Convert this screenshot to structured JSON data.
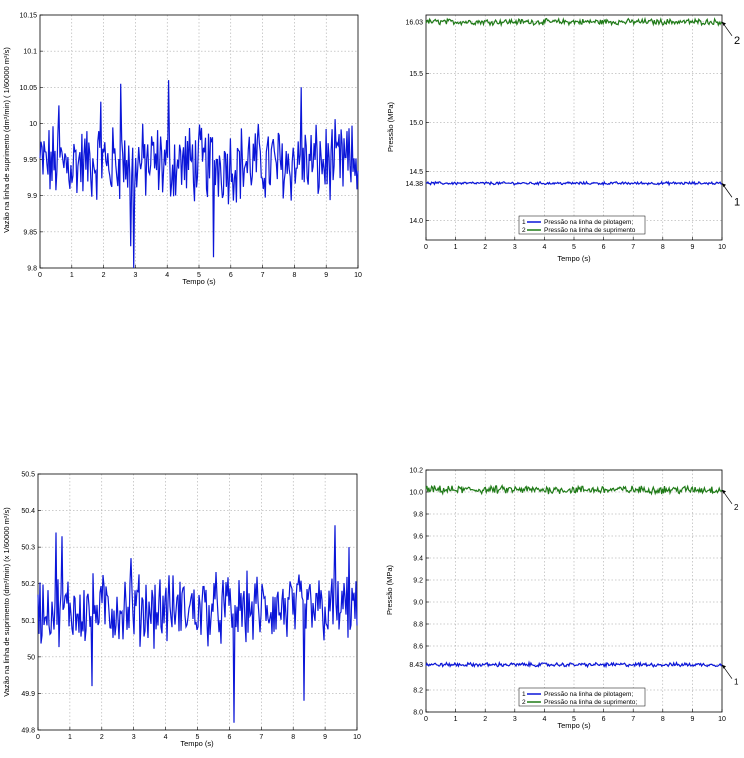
{
  "colors": {
    "blue": "#0b16d8",
    "green": "#1f7a17",
    "grid": "#9a9a9a"
  },
  "chart_data": [
    {
      "type": "line",
      "xlabel": "Tempo (s)",
      "ylabel": "Vazão na linha de suprimento (dm³/min) ( 1/60000 m³/s)",
      "xlim": [
        0,
        10
      ],
      "ylim": [
        9.8,
        10.15
      ],
      "xticks": [
        "0",
        "1",
        "2",
        "3",
        "4",
        "5",
        "6",
        "7",
        "8",
        "9",
        "10"
      ],
      "yticks": [
        "9.8",
        "9.85",
        "9.9",
        "9.95",
        "10",
        "10.05",
        "10.1",
        "10.15"
      ],
      "grid": true,
      "series": [
        {
          "color": "#0b16d8",
          "mean": 9.945,
          "amplitude": 0.045,
          "points": 320,
          "spikes": [
            [
              2.55,
              10.055
            ],
            [
              2.85,
              9.83
            ],
            [
              2.95,
              9.8
            ],
            [
              4.05,
              10.06
            ],
            [
              5.45,
              9.815
            ],
            [
              8.2,
              10.05
            ],
            [
              0.6,
              10.025
            ],
            [
              1.9,
              10.03
            ]
          ]
        }
      ]
    },
    {
      "type": "line",
      "xlabel": "Tempo (s)",
      "ylabel": "Pressão (MPa)",
      "xlim": [
        0,
        10
      ],
      "ylim": [
        13.8,
        16.1
      ],
      "xticks": [
        "0",
        "1",
        "2",
        "3",
        "4",
        "5",
        "6",
        "7",
        "8",
        "9",
        "10"
      ],
      "yticks": [
        {
          "value": 14.0,
          "label": "14.0"
        },
        {
          "value": 14.38,
          "label": "14.38"
        },
        {
          "value": 14.5,
          "label": "14.5"
        },
        {
          "value": 15.0,
          "label": "15.0"
        },
        {
          "value": 15.5,
          "label": "15.5"
        },
        {
          "value": 16.03,
          "label": "16.03"
        }
      ],
      "grid": true,
      "legend": {
        "placement": "bottom-center",
        "entries": [
          {
            "num": "1",
            "label": "Pressão na linha de pilotagem;",
            "color": "#0b16d8"
          },
          {
            "num": "2",
            "label": "Pressão na linha de suprimento",
            "color": "#1f7a17"
          }
        ]
      },
      "annotations": [
        {
          "text": "2",
          "attached_to": "series-2"
        },
        {
          "text": "1",
          "attached_to": "series-1"
        }
      ],
      "series": [
        {
          "color": "#1f7a17",
          "mean": 16.03,
          "amplitude": 0.025,
          "points": 320
        },
        {
          "color": "#0b16d8",
          "mean": 14.38,
          "amplitude": 0.012,
          "points": 320
        }
      ]
    },
    {
      "type": "line",
      "xlabel": "Tempo (s)",
      "ylabel": "Vazão na linha de suprimento (dm³/min) (x 1/60000 m³/s)",
      "xlim": [
        0,
        10
      ],
      "ylim": [
        49.8,
        50.5
      ],
      "xticks": [
        "0",
        "1",
        "2",
        "3",
        "4",
        "5",
        "6",
        "7",
        "8",
        "9",
        "10"
      ],
      "yticks": [
        "49.8",
        "49.9",
        "50",
        "50.1",
        "50.2",
        "50.3",
        "50.4",
        "50.5"
      ],
      "grid": true,
      "series": [
        {
          "color": "#0b16d8",
          "mean": 50.13,
          "amplitude": 0.08,
          "points": 320,
          "spikes": [
            [
              0.55,
              50.34
            ],
            [
              0.75,
              50.33
            ],
            [
              1.7,
              49.92
            ],
            [
              6.15,
              49.82
            ],
            [
              8.35,
              49.88
            ],
            [
              9.3,
              50.36
            ],
            [
              9.75,
              50.3
            ],
            [
              2.9,
              50.27
            ]
          ]
        }
      ]
    },
    {
      "type": "line",
      "xlabel": "Tempo (s)",
      "ylabel": "Pressão (MPa)",
      "xlim": [
        0,
        10
      ],
      "ylim": [
        8.0,
        10.2
      ],
      "xticks": [
        "0",
        "1",
        "2",
        "3",
        "4",
        "5",
        "6",
        "7",
        "8",
        "9",
        "10"
      ],
      "yticks": [
        {
          "value": 8.0,
          "label": "8.0"
        },
        {
          "value": 8.2,
          "label": "8.2"
        },
        {
          "value": 8.43,
          "label": "8.43"
        },
        {
          "value": 8.6,
          "label": "8.6"
        },
        {
          "value": 8.8,
          "label": "8.8"
        },
        {
          "value": 9.0,
          "label": "9.0"
        },
        {
          "value": 9.2,
          "label": "9.2"
        },
        {
          "value": 9.4,
          "label": "9.4"
        },
        {
          "value": 9.6,
          "label": "9.6"
        },
        {
          "value": 9.8,
          "label": "9.8"
        },
        {
          "value": 10.0,
          "label": "10.0"
        },
        {
          "value": 10.2,
          "label": "10.2"
        }
      ],
      "grid": true,
      "legend": {
        "placement": "bottom-center",
        "entries": [
          {
            "num": "1",
            "label": "Pressão na linha de pilotagem;",
            "color": "#0b16d8"
          },
          {
            "num": "2",
            "label": "Pressão na linha de suprimento;",
            "color": "#1f7a17"
          }
        ]
      },
      "annotations": [
        {
          "text": "2",
          "attached_to": "series-2"
        },
        {
          "text": "1",
          "attached_to": "series-1"
        }
      ],
      "series": [
        {
          "color": "#1f7a17",
          "mean": 10.02,
          "amplitude": 0.03,
          "points": 320
        },
        {
          "color": "#0b16d8",
          "mean": 8.43,
          "amplitude": 0.015,
          "points": 320
        }
      ]
    }
  ]
}
